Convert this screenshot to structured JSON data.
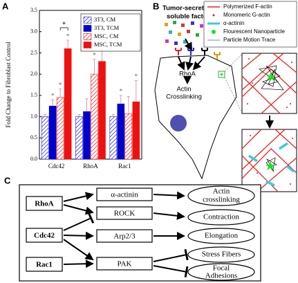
{
  "panel_labels": [
    "A",
    "B",
    "C"
  ],
  "chart_data": {
    "type": "bar",
    "y_label": "Fold Change to Fibroblast Control",
    "categories": [
      "Cdc42",
      "RhoA",
      "Rac1"
    ],
    "series": [
      {
        "name": "3T3, CM",
        "color": "#1a1acc",
        "hatch": true,
        "values": [
          1.0,
          1.0,
          1.0
        ],
        "errors": [
          0.05,
          0.05,
          0.05
        ],
        "significant": [
          false,
          false,
          false
        ]
      },
      {
        "name": "3T3, TCM",
        "color": "#0000cc",
        "hatch": false,
        "values": [
          1.25,
          1.12,
          1.3
        ],
        "errors": [
          0.15,
          0.3,
          0.2
        ],
        "significant": [
          true,
          false,
          true
        ]
      },
      {
        "name": "MSC, CM",
        "color": "#ee1111",
        "hatch": true,
        "values": [
          1.45,
          2.0,
          1.07
        ],
        "errors": [
          0.2,
          0.35,
          0.4
        ],
        "significant": [
          true,
          true,
          false
        ]
      },
      {
        "name": "MSC, TCM",
        "color": "#ee1111",
        "hatch": false,
        "values": [
          2.6,
          2.3,
          1.35
        ],
        "errors": [
          0.2,
          0.45,
          0.5
        ],
        "significant": [
          true,
          true,
          true
        ]
      }
    ],
    "significance_label": "*",
    "comparisons": [
      {
        "category": "Cdc42",
        "series": [
          "MSC, CM",
          "MSC, TCM"
        ]
      }
    ],
    "ylim": [
      0,
      3.5
    ],
    "yticks": [
      {
        "value": 0,
        "label": "0.0"
      },
      0.5,
      {
        "value": 1,
        "label": "1.0"
      },
      1.5,
      {
        "value": 2,
        "label": "2.0"
      },
      2.5,
      {
        "value": 3,
        "label": "3.0"
      },
      3.5
    ],
    "legend": "upper right"
  },
  "diagram": {
    "tumor_factors": [
      "Tumor-secreted",
      "soluble factors"
    ],
    "rhoa": "RhoA",
    "crosslinking": [
      "Actin",
      "Crosslinking"
    ],
    "legend": [
      "Polymerized F-actin",
      "Monomeric G-actin",
      "α-actinin",
      "Flourescent Nanoparticle",
      "Particle Motion Trace"
    ]
  },
  "pathway": {
    "regulators": [
      "RhoA",
      "Cdc42",
      "Rac1"
    ],
    "effectors": [
      "α-actinin",
      "ROCK",
      "Arp2/3",
      "PAK"
    ],
    "outcomes": [
      [
        "Actin",
        "crosslinking"
      ],
      [
        "Contraction"
      ],
      [
        "Elongation"
      ],
      [
        "Stress Fibers"
      ],
      [
        "Focal",
        "Adhesions"
      ]
    ]
  }
}
